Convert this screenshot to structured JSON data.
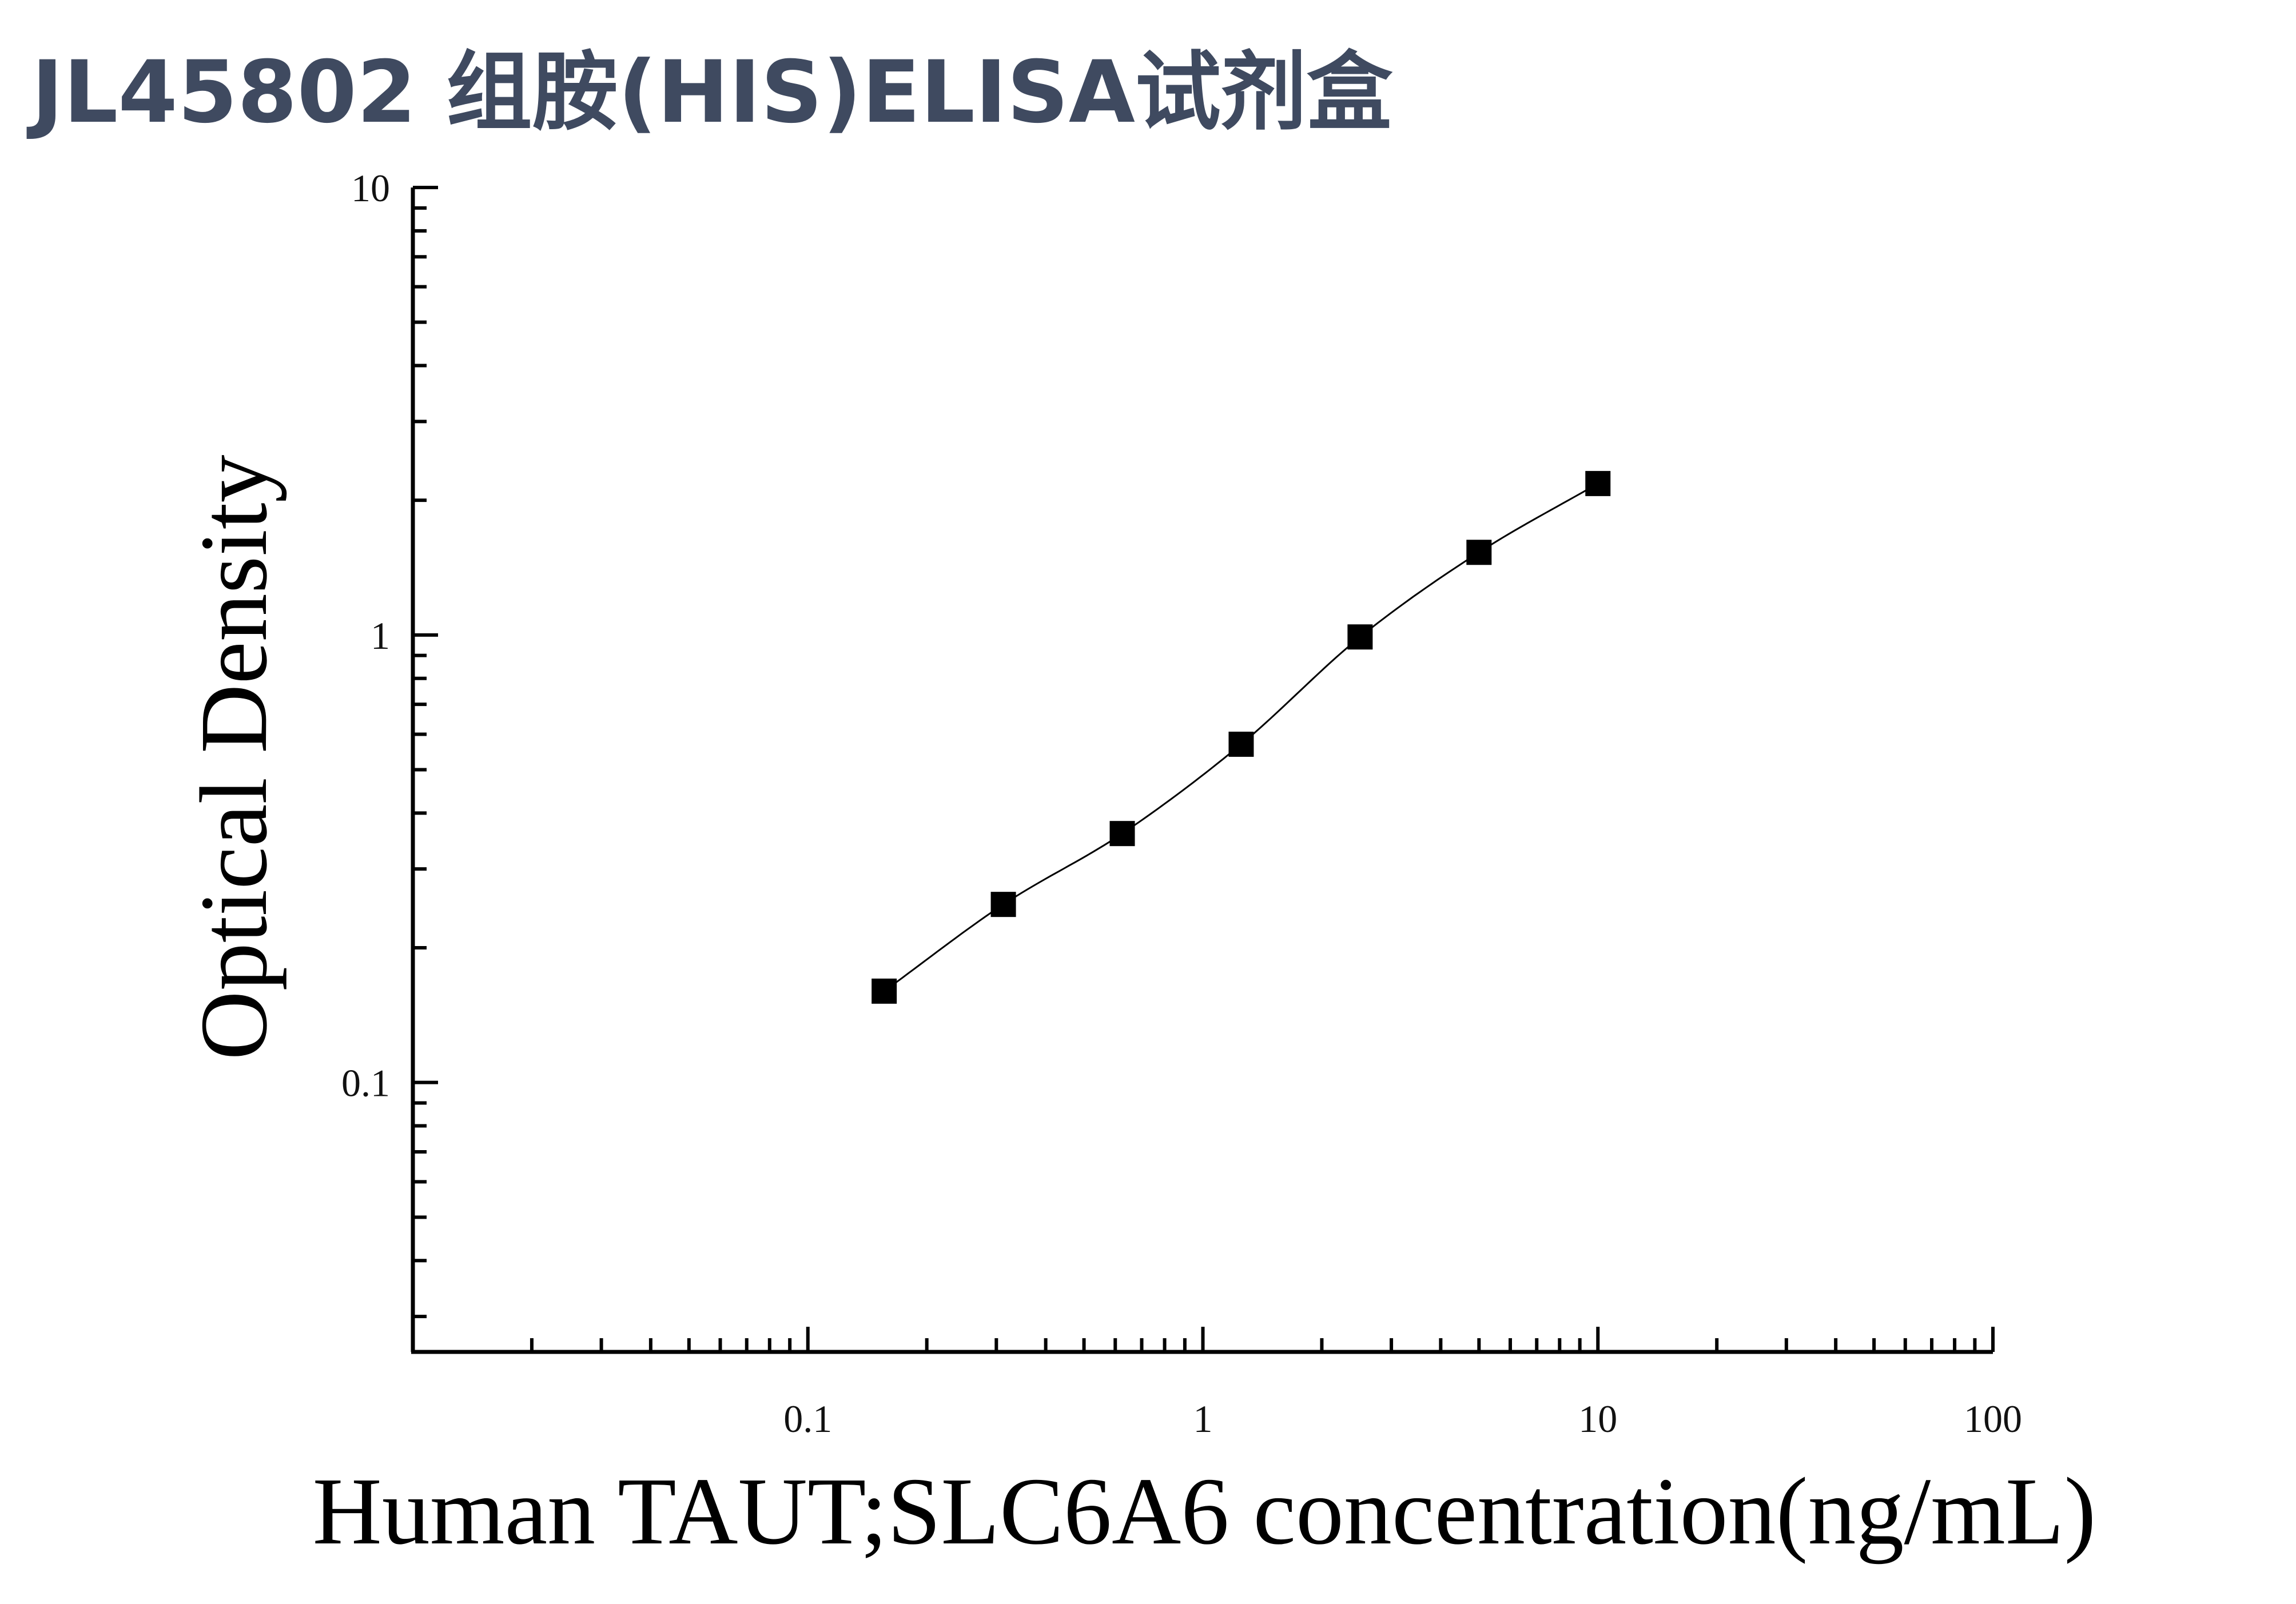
{
  "page": {
    "title": "JL45802 组胺(HIS)ELISA试剂盒"
  },
  "chart_data": {
    "type": "scatter",
    "title": "",
    "xlabel": "Human TAUT;SLC6A6 concentration(ng/mL)",
    "ylabel": "Optical Density",
    "x_scale": "log",
    "y_scale": "log",
    "xlim": [
      0.01,
      100
    ],
    "ylim": [
      0.025,
      10
    ],
    "x_ticks": [
      "0.1",
      "1",
      "10",
      "100"
    ],
    "y_ticks": [
      "0.1",
      "1",
      "10"
    ],
    "grid": false,
    "legend": "none",
    "series": [
      {
        "x": [
          0.156,
          0.3125,
          0.625,
          1.25,
          2.5,
          5,
          10
        ],
        "y": [
          0.16,
          0.25,
          0.36,
          0.57,
          0.99,
          1.53,
          2.18
        ],
        "marker": "square",
        "fit": "four-parameter logistic curve"
      }
    ],
    "colors": {
      "marker": "#000000",
      "curve": "#000000",
      "axis": "#000000"
    }
  }
}
